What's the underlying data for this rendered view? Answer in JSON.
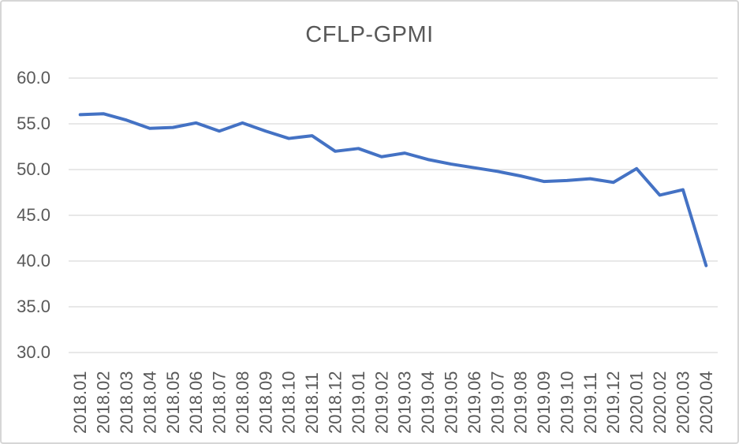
{
  "chart_data": {
    "type": "line",
    "title": "CFLP-GPMI",
    "categories": [
      "2018.01",
      "2018.02",
      "2018.03",
      "2018.04",
      "2018.05",
      "2018.06",
      "2018.07",
      "2018.08",
      "2018.09",
      "2018.10",
      "2018.11",
      "2018.12",
      "2019.01",
      "2019.02",
      "2019.03",
      "2019.04",
      "2019.05",
      "2019.06",
      "2019.07",
      "2019.08",
      "2019.09",
      "2019.10",
      "2019.11",
      "2019.12",
      "2020.01",
      "2020.02",
      "2020.03",
      "2020.04"
    ],
    "series": [
      {
        "name": "CFLP-GPMI",
        "values": [
          56.0,
          56.1,
          55.4,
          54.5,
          54.6,
          55.1,
          54.2,
          55.1,
          54.2,
          53.4,
          53.7,
          52.0,
          52.3,
          51.4,
          51.8,
          51.1,
          50.6,
          50.2,
          49.8,
          49.3,
          48.7,
          48.8,
          49.0,
          48.6,
          50.1,
          47.2,
          47.8,
          39.5
        ]
      }
    ],
    "xlabel": "",
    "ylabel": "",
    "ylim": [
      30,
      60
    ],
    "yticks": [
      60,
      55,
      50,
      45,
      40,
      35,
      30
    ],
    "ytick_labels": [
      "60.0",
      "55.0",
      "50.0",
      "45.0",
      "40.0",
      "35.0",
      "30.0"
    ],
    "x_tick_rotation_degrees": 90,
    "grid": "horizontal-only",
    "legend_position": "none",
    "colors": {
      "line": "#4472C4",
      "gridline": "#D9D9D9",
      "tick_text": "#595959",
      "title_text": "#595959",
      "chart_border": "#D6D6D6",
      "background": "#FFFFFF"
    }
  }
}
